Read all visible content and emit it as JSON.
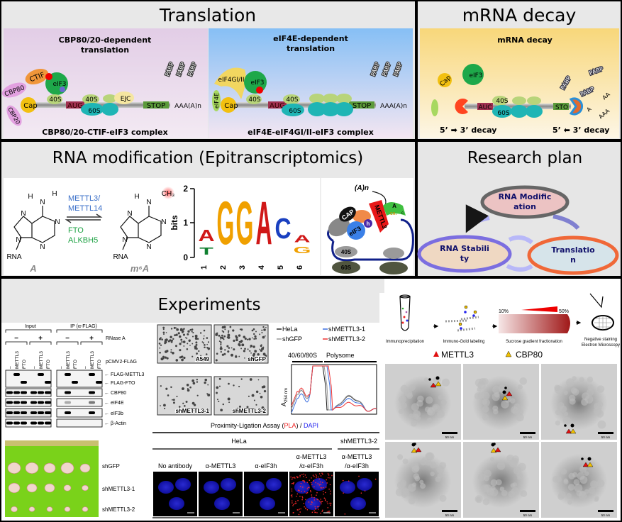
{
  "translation": {
    "title": "Translation",
    "cbp": {
      "title_1": "CBP80/20-dependent",
      "title_2": "translation",
      "labels": {
        "ctif": "CTIF",
        "cbp80": "CBP80",
        "cbp20": "CBP20",
        "cap": "Cap",
        "eif3": "eIF3",
        "g": "g",
        "a": "a",
        "s40a": "40S",
        "aug": "AUG",
        "s40b": "40S",
        "s60": "60S",
        "ejc": "EJC",
        "stop": "STOP",
        "polya": "AAA(A)n",
        "pabp": "PABP"
      },
      "complex": "CBP80/20-CTIF-eIF3 complex"
    },
    "eif4e": {
      "title_1": "eIF4E-dependent",
      "title_2": "translation",
      "labels": {
        "eif4g": "eIF4GI/II",
        "eif4e": "eIF4E",
        "cap": "Cap",
        "eif3": "eIF3",
        "g": "g",
        "s40a": "40S",
        "aug": "AUG",
        "s40b": "40S",
        "s60": "60S",
        "stop": "STOP",
        "polya": "AAA(A)n",
        "pabp": "PABP"
      },
      "complex": "eIF4E-eIF4GI/II-eIF3 complex"
    }
  },
  "decay": {
    "title": "mRNA decay",
    "subtitle": "mRNA decay",
    "labels": {
      "cap": "Cap",
      "eif3": "eIF3",
      "aug": "AUC",
      "s40": "40S",
      "s60": "60S",
      "stop": "STO",
      "pabp": "PABP",
      "aa": "AA",
      "a": "A",
      "aaa": "AAA"
    },
    "left_decay": "5’ ➡ 3’ decay",
    "right_decay": "5’ ⬅ 3’ decay"
  },
  "modification": {
    "title": "RNA modification  (Epitranscriptomics)",
    "writers_1": "METTL3/",
    "writers_2": "METTL14",
    "erasers_1": "FTO",
    "erasers_2": "ALKBH5",
    "atoms": {
      "h": "H",
      "n": "N",
      "rna": "RNA",
      "ch3": "CH₃"
    },
    "a_label": "A",
    "m6a_label": "m⁶A",
    "logo": {
      "ylabel": "bits",
      "yticks": [
        "0",
        "1",
        "2"
      ],
      "positions": [
        "1",
        "2",
        "3",
        "4",
        "5",
        "6"
      ],
      "letters": [
        [
          "A",
          "T"
        ],
        [
          "G"
        ],
        [
          "G"
        ],
        [
          "A"
        ],
        [
          "C"
        ],
        [
          "A",
          "G"
        ]
      ]
    },
    "complex": {
      "polya": "(A)n",
      "cap": "CAP",
      "eif3": "eIF3",
      "h": "h",
      "mettl3": "METTL3",
      "ch3": "CH₃",
      "a": "A",
      "c": "c",
      "s40": "40S",
      "s60": "60S"
    }
  },
  "plan": {
    "title": "Research plan",
    "mod_1": "RNA Modific",
    "mod_2": "ation",
    "stab_1": "RNA Stabili",
    "stab_2": "ty",
    "trans_1": "Translatio",
    "trans_2": "n"
  },
  "experiments": {
    "title": "Experiments",
    "blot": {
      "input": "Input",
      "ip": "IP (α-FLAG)",
      "rnase": "RNase A",
      "minus": "−",
      "plus": "+",
      "vector": "pCMV2-FLAG",
      "lanes": [
        "–",
        "METTL3",
        "FTO",
        "–",
        "METTL3",
        "FTO"
      ],
      "bands": [
        "FLAG-METTL3",
        "FLAG-FTO",
        "CBP80",
        "eIF4E",
        "eIF3b",
        "β-Actin"
      ]
    },
    "tumor": {
      "rows": [
        "shGFP",
        "shMETTL3-1",
        "shMETTL3-2"
      ]
    },
    "colonies": [
      "A549",
      "shGFP",
      "shMETTL3-1",
      "shMETTL3-2"
    ],
    "polysome": {
      "legend": [
        {
          "name": "HeLa",
          "color": "#222222"
        },
        {
          "name": "shGFP",
          "color": "#999999"
        },
        {
          "name": "shMETTL3-1",
          "color": "#3a6fe0"
        },
        {
          "name": "shMETTL3-2",
          "color": "#ee3333"
        }
      ],
      "fraction_1": "40/60/80S",
      "fraction_2": "Polysome",
      "ylabel": "A",
      "ylabel_sub": "254 nm"
    },
    "pla": {
      "title_a": "Proximity-Ligation Assay (",
      "title_pla": "PLA",
      "title_b": ") / ",
      "title_dapi": "DAPI",
      "group_hela": "HeLa",
      "group_sh": "shMETTL3-2",
      "cols": [
        [
          "",
          "No antibody"
        ],
        [
          "",
          "α-METTL3"
        ],
        [
          "",
          "α-eIF3h"
        ],
        [
          "α-METTL3",
          "/α-eIF3h"
        ],
        [
          "α-METTL3",
          "/α-eIF3h"
        ]
      ]
    },
    "em": {
      "steps": [
        "Immunoprecipitation",
        "Immuno-Gold labeling",
        "Sucrose gradient fractionation",
        "Negative staining",
        "Electron Microscopy"
      ],
      "grad_low": "10%",
      "grad_high": "50%",
      "legend_mettl3": "METTL3",
      "legend_cbp80": "CBP80",
      "scale": "50 nm",
      "colors": {
        "mettl3": "#e01010",
        "cbp80": "#f0c000"
      }
    }
  }
}
